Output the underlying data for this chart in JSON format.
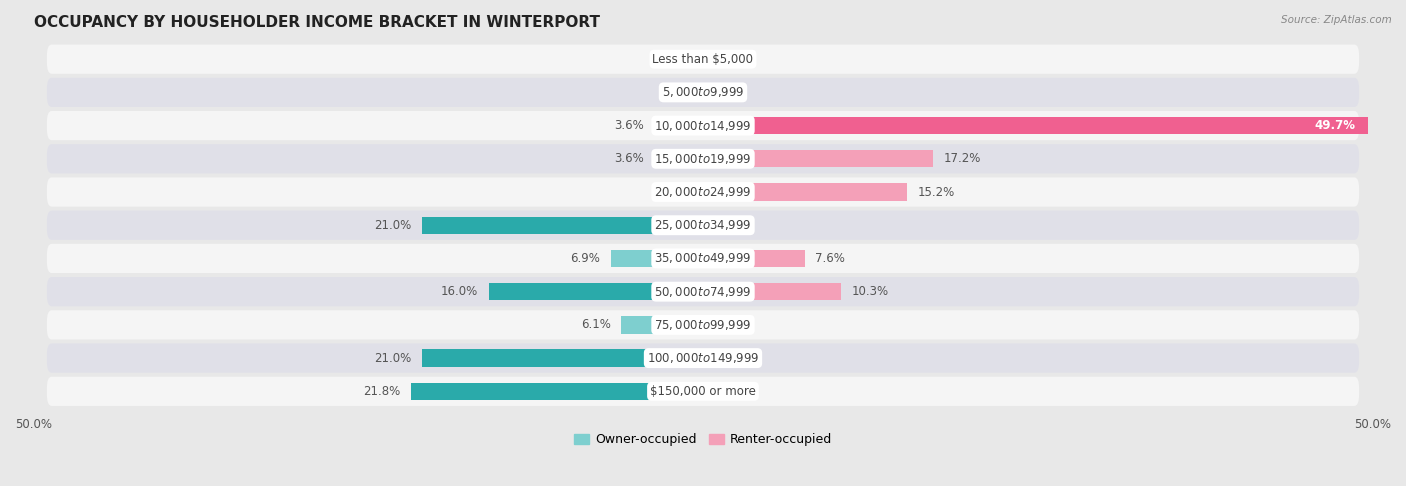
{
  "title": "OCCUPANCY BY HOUSEHOLDER INCOME BRACKET IN WINTERPORT",
  "source": "Source: ZipAtlas.com",
  "categories": [
    "Less than $5,000",
    "$5,000 to $9,999",
    "$10,000 to $14,999",
    "$15,000 to $19,999",
    "$20,000 to $24,999",
    "$25,000 to $34,999",
    "$35,000 to $49,999",
    "$50,000 to $74,999",
    "$75,000 to $99,999",
    "$100,000 to $149,999",
    "$150,000 or more"
  ],
  "owner_values": [
    0.0,
    0.0,
    3.6,
    3.6,
    0.0,
    21.0,
    6.9,
    16.0,
    6.1,
    21.0,
    21.8
  ],
  "renter_values": [
    0.0,
    0.0,
    49.7,
    17.2,
    15.2,
    0.0,
    7.6,
    10.3,
    0.0,
    0.0,
    0.0
  ],
  "owner_color_light": "#7ecfcf",
  "owner_color_dark": "#2aaaaa",
  "renter_color_light": "#f4a0b8",
  "renter_color_dark": "#f06090",
  "bar_height": 0.52,
  "xlim": 50.0,
  "background_color": "#e8e8e8",
  "row_bg_light": "#f5f5f5",
  "row_bg_dark": "#e0e0e8",
  "title_fontsize": 11,
  "label_fontsize": 8.5,
  "tick_fontsize": 8.5,
  "legend_fontsize": 9,
  "cat_fontsize": 8.5
}
